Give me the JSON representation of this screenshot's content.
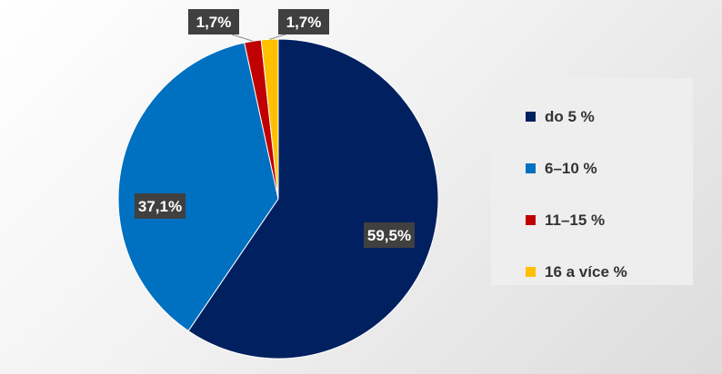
{
  "chart_data": {
    "type": "pie",
    "categories": [
      "do 5 %",
      "6–10 %",
      "11–15 %",
      "16 a více %"
    ],
    "values": [
      59.5,
      37.1,
      1.7,
      1.7
    ],
    "data_labels": [
      "59,5%",
      "37,1%",
      "1,7%",
      "1,7%"
    ],
    "colors": [
      "#002060",
      "#0070c0",
      "#c00000",
      "#ffc000"
    ],
    "legend_position": "right",
    "title": ""
  }
}
